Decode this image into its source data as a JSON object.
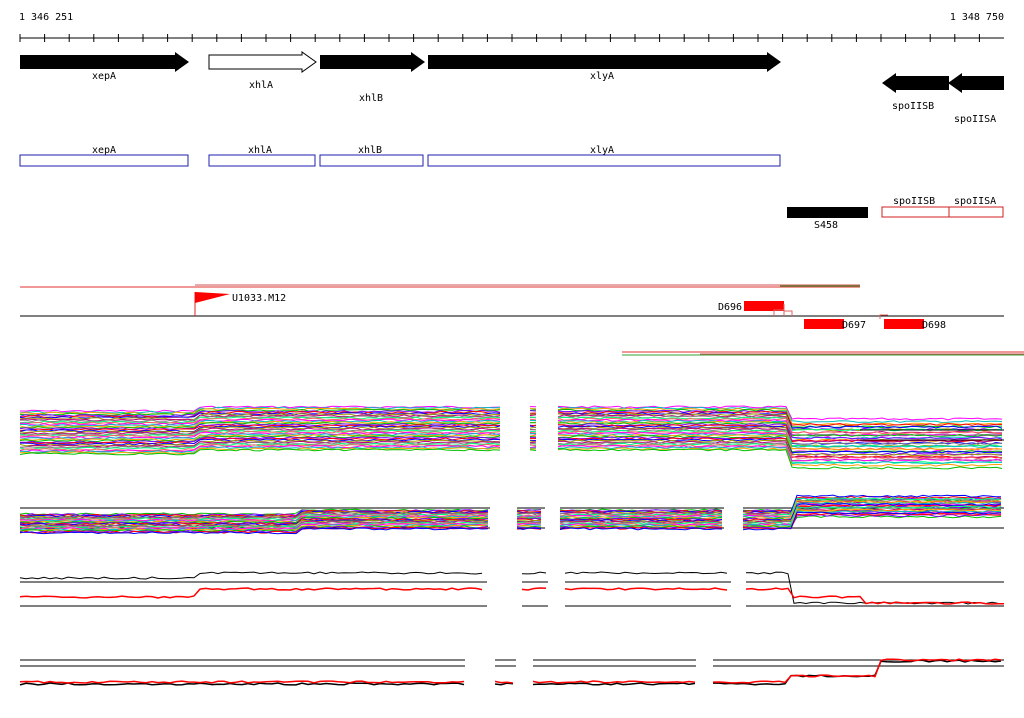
{
  "coordinates": {
    "start": "1 346 251",
    "end": "1 348 750"
  },
  "genes": [
    {
      "id": "xepA",
      "label": "xepA",
      "strand": "+",
      "filled": true
    },
    {
      "id": "xhlA",
      "label": "xhlA",
      "strand": "+",
      "filled": false
    },
    {
      "id": "xhlB",
      "label": "xhlB",
      "strand": "+",
      "filled": true
    },
    {
      "id": "xlyA",
      "label": "xlyA",
      "strand": "+",
      "filled": true
    },
    {
      "id": "spoIISB",
      "label": "spoIISB",
      "strand": "-",
      "filled": true
    },
    {
      "id": "spoIISA",
      "label": "spoIISA",
      "strand": "-",
      "filled": true
    }
  ],
  "transcripts": [
    {
      "label": "xepA"
    },
    {
      "label": "xhlA"
    },
    {
      "label": "xhlB"
    },
    {
      "label": "xlyA"
    }
  ],
  "terminators": [
    {
      "label": "spoIISB"
    },
    {
      "label": "spoIISA"
    }
  ],
  "regulatory_site": {
    "label": "S458"
  },
  "promoter": {
    "label": "U1033.M12"
  },
  "dna_segments": [
    {
      "label": "D696"
    },
    {
      "label": "D697"
    },
    {
      "label": "D698"
    }
  ],
  "colors": {
    "gene_fill": "#000000",
    "transcript_outline": "#1f1fb0",
    "terminator_outline": "#d02020",
    "feature_red": "#ff0000",
    "profile_palette": [
      "#ff00ff",
      "#00c0c0",
      "#ffa000",
      "#00c000",
      "#8000ff",
      "#ff0000",
      "#0000ff",
      "#a0a000",
      "#c00080",
      "#808080",
      "#00ff80",
      "#ff6060"
    ]
  }
}
